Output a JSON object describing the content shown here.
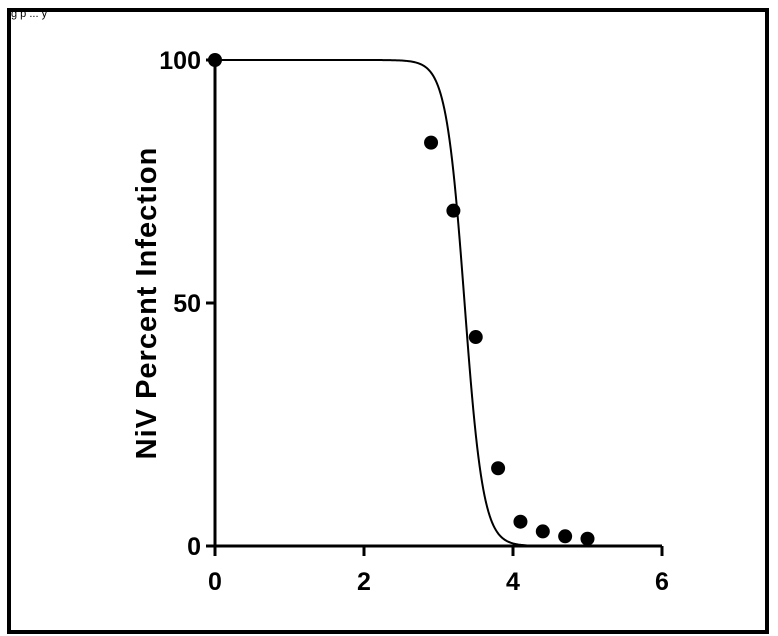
{
  "figure": {
    "caption_fragment": "g p ... y"
  },
  "chart_data": {
    "type": "scatter",
    "title": "",
    "xlabel": "",
    "ylabel": "NiV Percent Infection",
    "xlim": [
      0,
      6
    ],
    "ylim": [
      0,
      100
    ],
    "x_ticks": [
      0,
      2,
      4,
      6
    ],
    "y_ticks": [
      0,
      50,
      100
    ],
    "grid": false,
    "legend": "none",
    "series": [
      {
        "points": [
          {
            "x": 0,
            "y": 100
          },
          {
            "x": 2.9,
            "y": 83
          },
          {
            "x": 3.2,
            "y": 69
          },
          {
            "x": 3.5,
            "y": 43
          },
          {
            "x": 3.8,
            "y": 16
          },
          {
            "x": 4.1,
            "y": 5
          },
          {
            "x": 4.4,
            "y": 3
          },
          {
            "x": 4.7,
            "y": 2
          },
          {
            "x": 5.0,
            "y": 1.5
          }
        ],
        "fit_curve": {
          "model": "four-parameter logistic",
          "top": 100,
          "bottom": 0,
          "ec50": 3.35,
          "slope": 3.5
        },
        "color": "#000000"
      }
    ]
  }
}
